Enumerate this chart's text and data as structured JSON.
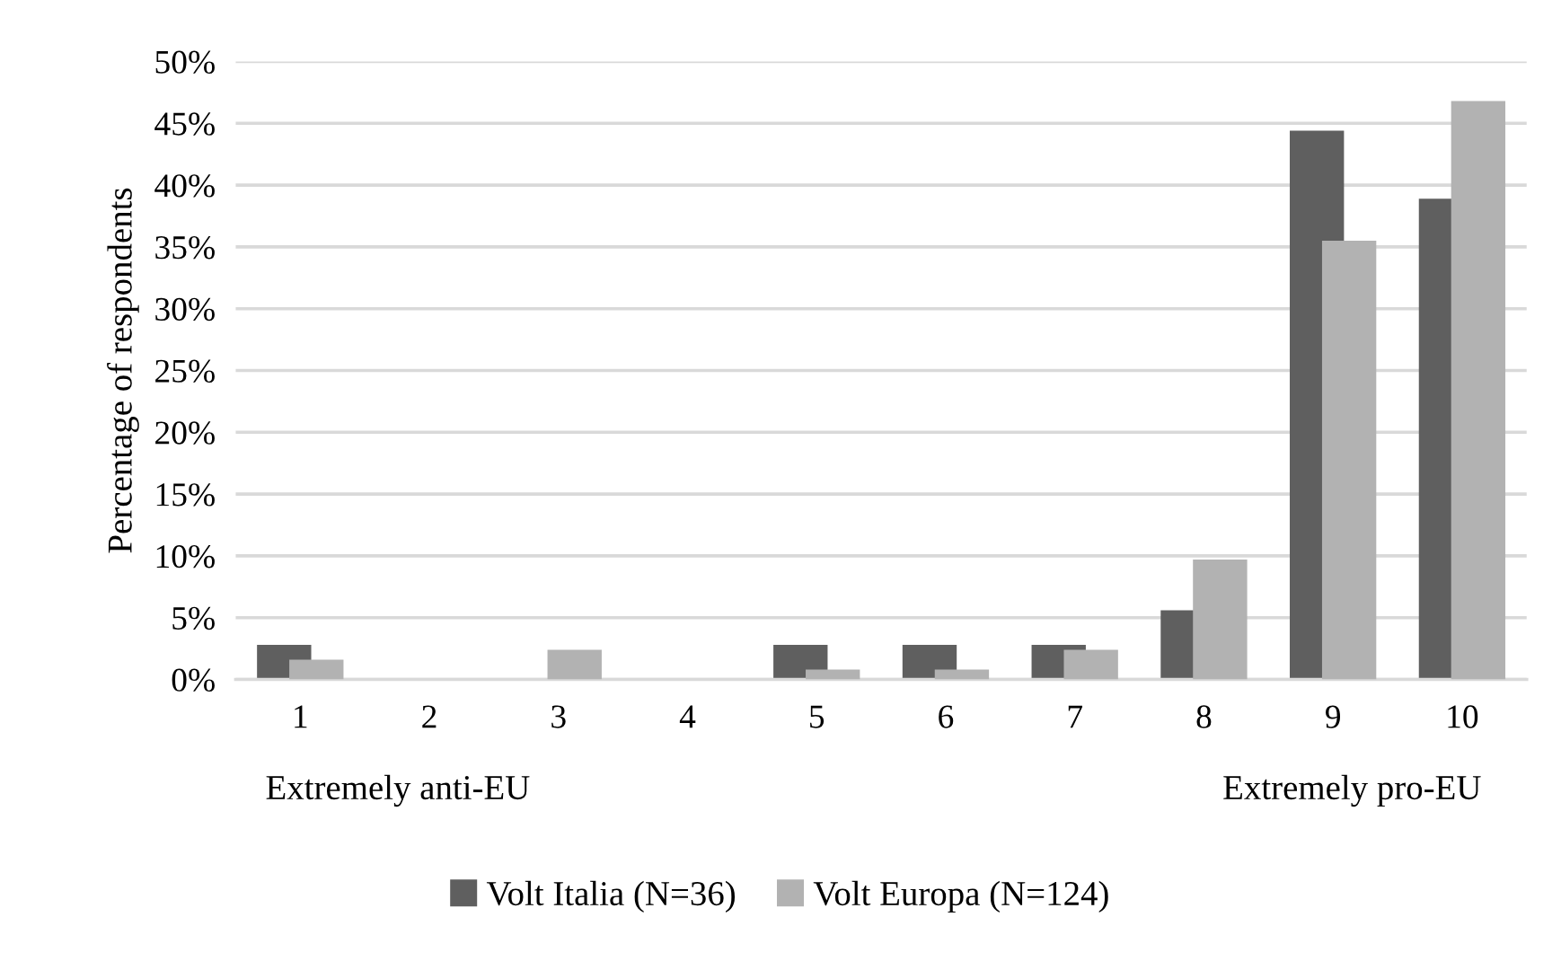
{
  "chart_data": {
    "type": "bar",
    "ylabel": "Percentage of respondents",
    "categories": [
      "1",
      "2",
      "3",
      "4",
      "5",
      "6",
      "7",
      "8",
      "9",
      "10"
    ],
    "series": [
      {
        "name": "Volt Italia (N=36)",
        "color": "#5f5f5f",
        "values": [
          2.8,
          0,
          0,
          0,
          2.8,
          2.8,
          2.8,
          5.6,
          44.4,
          38.9
        ]
      },
      {
        "name": "Volt Europa (N=124)",
        "color": "#b2b2b2",
        "values": [
          1.6,
          0,
          2.4,
          0,
          0.8,
          0.8,
          2.4,
          9.7,
          35.5,
          46.8
        ]
      }
    ],
    "ylim": [
      0,
      50
    ],
    "yticks": [
      {
        "value": 0,
        "label": "0%"
      },
      {
        "value": 5,
        "label": "5%"
      },
      {
        "value": 10,
        "label": "10%"
      },
      {
        "value": 15,
        "label": "15%"
      },
      {
        "value": 20,
        "label": "20%"
      },
      {
        "value": 25,
        "label": "25%"
      },
      {
        "value": 30,
        "label": "30%"
      },
      {
        "value": 35,
        "label": "35%"
      },
      {
        "value": 40,
        "label": "40%"
      },
      {
        "value": 45,
        "label": "45%"
      },
      {
        "value": 50,
        "label": "50%"
      }
    ],
    "grid": "y",
    "legend": "bottom",
    "annotations": [
      "Extremely anti-EU",
      "Extremely pro-EU"
    ]
  }
}
